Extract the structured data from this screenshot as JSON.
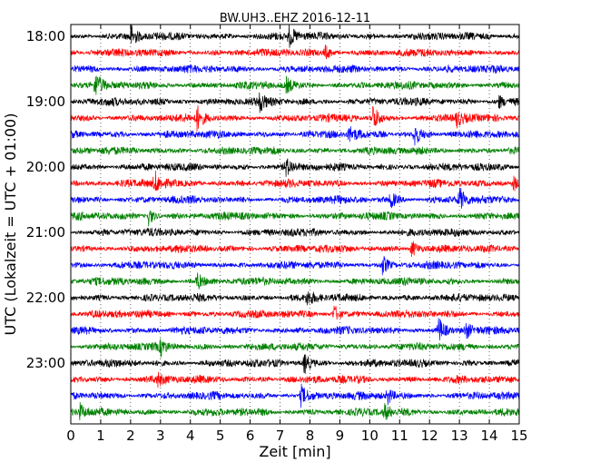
{
  "chart_data": {
    "type": "line",
    "title": "BW.UH3..EHZ 2016-12-11",
    "xlabel": "Zeit  [min]",
    "ylabel": "UTC (Lokalzeit = UTC + 01:00)",
    "xlim": [
      0,
      15
    ],
    "x_ticks": [
      "0",
      "1",
      "2",
      "3",
      "4",
      "5",
      "6",
      "7",
      "8",
      "9",
      "10",
      "11",
      "12",
      "13",
      "14",
      "15"
    ],
    "y_tick_labels": [
      "18:00",
      "19:00",
      "20:00",
      "21:00",
      "22:00",
      "23:00"
    ],
    "trace_interval_min": 15,
    "trace_start_times": [
      "18:00",
      "18:15",
      "18:30",
      "18:45",
      "19:00",
      "19:15",
      "19:30",
      "19:45",
      "20:00",
      "20:15",
      "20:30",
      "20:45",
      "21:00",
      "21:15",
      "21:30",
      "21:45",
      "22:00",
      "22:15",
      "22:30",
      "22:45",
      "23:00",
      "23:15",
      "23:30",
      "23:45"
    ],
    "trace_colors": [
      "#000000",
      "#ff0000",
      "#0000ff",
      "#008000"
    ],
    "grid": "vertical dotted at each minute",
    "events": [
      {
        "trace": 0,
        "x": 2.0,
        "amp": 1.6
      },
      {
        "trace": 0,
        "x": 7.3,
        "amp": 1.5
      },
      {
        "trace": 1,
        "x": 8.5,
        "amp": 1.0
      },
      {
        "trace": 3,
        "x": 0.8,
        "amp": 1.7
      },
      {
        "trace": 3,
        "x": 7.2,
        "amp": 1.0
      },
      {
        "trace": 4,
        "x": 6.3,
        "amp": 1.3
      },
      {
        "trace": 4,
        "x": 14.3,
        "amp": 1.1
      },
      {
        "trace": 5,
        "x": 4.2,
        "amp": 2.0
      },
      {
        "trace": 5,
        "x": 10.1,
        "amp": 2.0
      },
      {
        "trace": 5,
        "x": 12.9,
        "amp": 1.3
      },
      {
        "trace": 6,
        "x": 11.5,
        "amp": 1.8
      },
      {
        "trace": 6,
        "x": 9.3,
        "amp": 1.2
      },
      {
        "trace": 8,
        "x": 7.2,
        "amp": 1.1
      },
      {
        "trace": 9,
        "x": 2.8,
        "amp": 1.8
      },
      {
        "trace": 9,
        "x": 14.8,
        "amp": 1.4
      },
      {
        "trace": 10,
        "x": 10.7,
        "amp": 1.3
      },
      {
        "trace": 10,
        "x": 13.0,
        "amp": 1.8
      },
      {
        "trace": 11,
        "x": 2.6,
        "amp": 1.3
      },
      {
        "trace": 13,
        "x": 11.4,
        "amp": 1.3
      },
      {
        "trace": 14,
        "x": 10.4,
        "amp": 1.4
      },
      {
        "trace": 15,
        "x": 4.2,
        "amp": 1.5
      },
      {
        "trace": 16,
        "x": 7.9,
        "amp": 1.0
      },
      {
        "trace": 17,
        "x": 8.8,
        "amp": 1.3
      },
      {
        "trace": 18,
        "x": 12.3,
        "amp": 1.8
      },
      {
        "trace": 18,
        "x": 13.2,
        "amp": 1.3
      },
      {
        "trace": 19,
        "x": 3.0,
        "amp": 1.1
      },
      {
        "trace": 20,
        "x": 7.8,
        "amp": 1.6
      },
      {
        "trace": 21,
        "x": 2.9,
        "amp": 1.0
      },
      {
        "trace": 22,
        "x": 7.7,
        "amp": 1.6
      },
      {
        "trace": 22,
        "x": 10.6,
        "amp": 1.3
      },
      {
        "trace": 23,
        "x": 0.3,
        "amp": 1.1
      },
      {
        "trace": 23,
        "x": 10.5,
        "amp": 1.0
      }
    ]
  }
}
